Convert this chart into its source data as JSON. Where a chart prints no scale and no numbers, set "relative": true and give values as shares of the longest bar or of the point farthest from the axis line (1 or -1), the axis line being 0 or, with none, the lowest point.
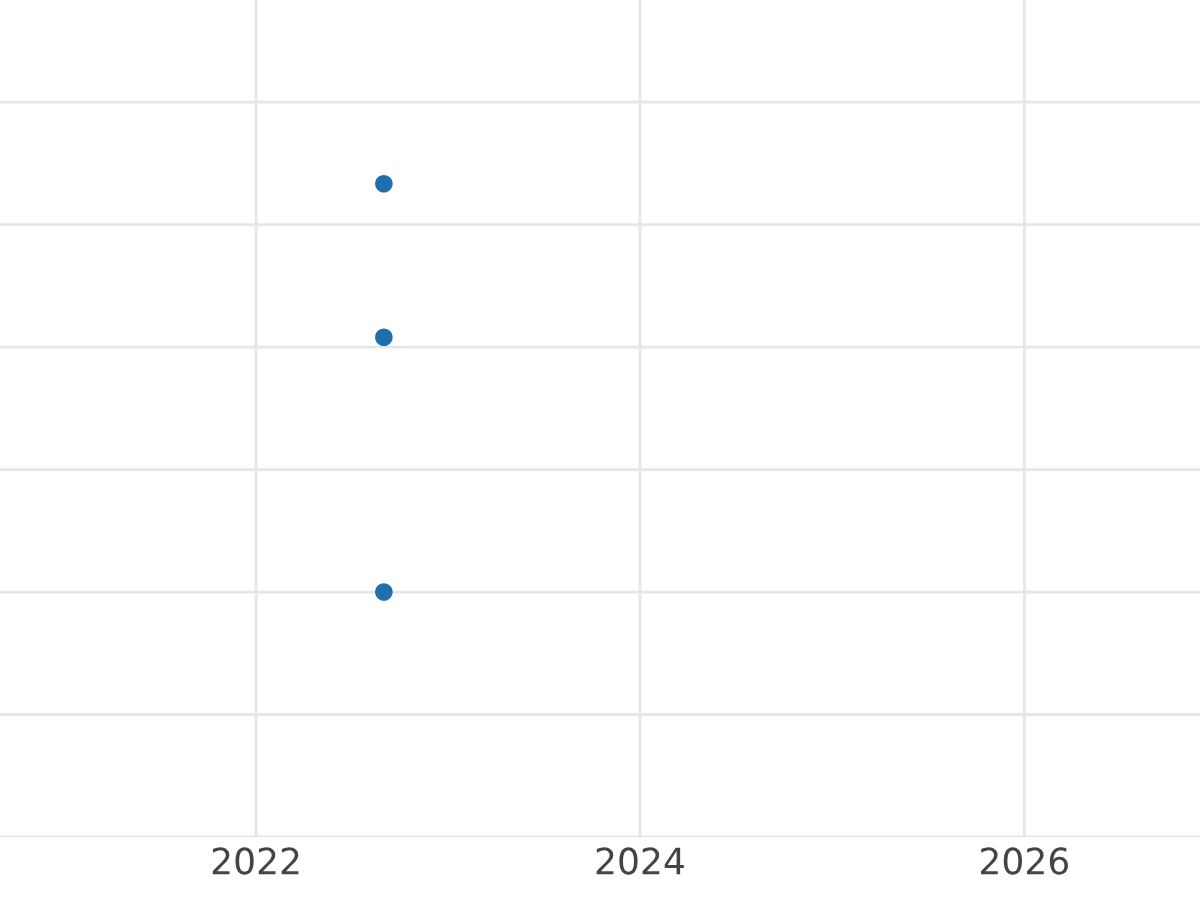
{
  "chart_data": {
    "type": "scatter",
    "relative": true,
    "x": [
      "2022-09",
      "2022-09",
      "2022-09"
    ],
    "series": [
      {
        "color": "#1f6fad",
        "values": [
          1,
          0.624,
          0
        ]
      }
    ],
    "xlim": [
      "2020-09",
      "2026-12"
    ],
    "xticks": [
      "2022",
      "2024",
      "2026"
    ],
    "grid": true,
    "marker": "circle",
    "tick_labels": "x"
  }
}
